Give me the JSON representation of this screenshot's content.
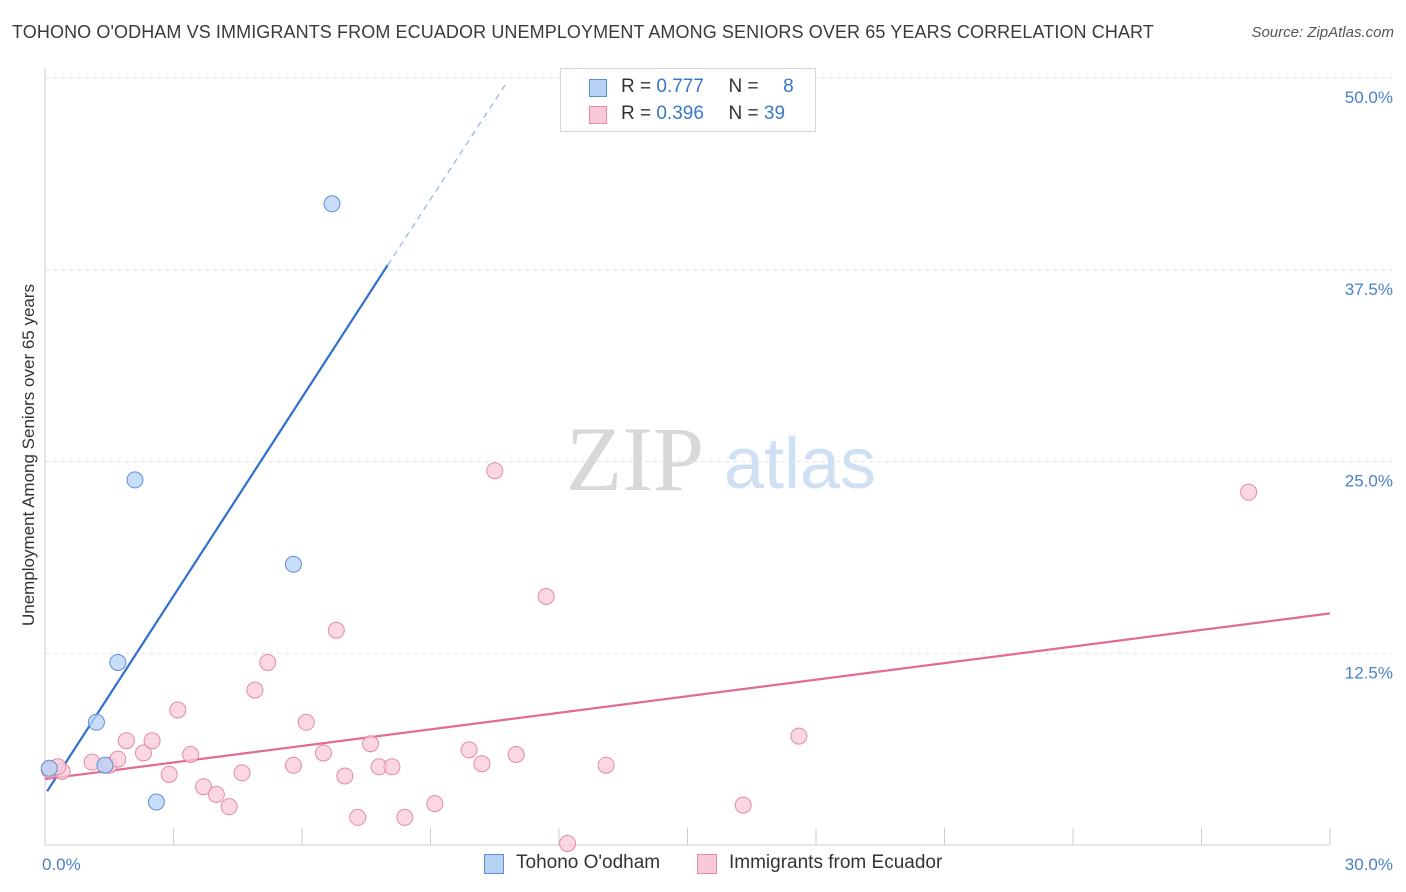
{
  "title": "TOHONO O'ODHAM VS IMMIGRANTS FROM ECUADOR UNEMPLOYMENT AMONG SENIORS OVER 65 YEARS CORRELATION CHART",
  "source": "Source: ZipAtlas.com",
  "watermark": {
    "zip": "ZIP",
    "atlas": "atlas"
  },
  "legend": {
    "r_label": "R =",
    "n_label": "N =",
    "rows": [
      {
        "name": "Tohono O'odham",
        "r": "0.777",
        "n": "8"
      },
      {
        "name": "Immigrants from Ecuador",
        "r": "0.396",
        "n": "39"
      }
    ]
  },
  "colors": {
    "blue_fill": "#b7d2f5",
    "blue_stroke": "#5b8fd6",
    "blue_line": "#2f6fce",
    "pink_fill": "#f9c9d8",
    "pink_stroke": "#e38aa8",
    "pink_line": "#e26a96",
    "tick_label": "#4a7fcb",
    "grid": "#e3e3e3"
  },
  "chart_data": {
    "type": "scatter",
    "title": "TOHONO O'ODHAM VS IMMIGRANTS FROM ECUADOR UNEMPLOYMENT AMONG SENIORS OVER 65 YEARS CORRELATION CHART",
    "xlabel": "",
    "ylabel": "Unemployment Among Seniors over 65 years",
    "xlim": [
      0,
      30
    ],
    "ylim": [
      0,
      50
    ],
    "x_tick_labels": [
      {
        "value": 0,
        "label": "0.0%"
      },
      {
        "value": 30,
        "label": "30.0%"
      }
    ],
    "y_tick_labels": [
      {
        "value": 12.5,
        "label": "12.5%"
      },
      {
        "value": 25,
        "label": "25.0%"
      },
      {
        "value": 37.5,
        "label": "37.5%"
      },
      {
        "value": 50,
        "label": "50.0%"
      }
    ],
    "series": [
      {
        "name": "Tohono O'odham",
        "color_key": "blue",
        "points": [
          {
            "x": 0.1,
            "y": 5.0
          },
          {
            "x": 1.4,
            "y": 5.2
          },
          {
            "x": 1.2,
            "y": 8.0
          },
          {
            "x": 1.7,
            "y": 11.9
          },
          {
            "x": 2.1,
            "y": 23.8
          },
          {
            "x": 2.6,
            "y": 2.8
          },
          {
            "x": 5.8,
            "y": 18.3
          },
          {
            "x": 6.7,
            "y": 41.8
          }
        ],
        "trend": {
          "x0": 0.05,
          "y0": 3.5,
          "x1": 8.0,
          "y1": 37.8,
          "dash_to_x": 10.8,
          "dash_to_y": 49.8
        }
      },
      {
        "name": "Immigrants from Ecuador",
        "color_key": "pink",
        "points": [
          {
            "x": 0.1,
            "y": 4.9
          },
          {
            "x": 0.4,
            "y": 4.8
          },
          {
            "x": 1.1,
            "y": 5.4
          },
          {
            "x": 1.5,
            "y": 5.2
          },
          {
            "x": 1.7,
            "y": 5.6
          },
          {
            "x": 1.9,
            "y": 6.8
          },
          {
            "x": 2.3,
            "y": 6.0
          },
          {
            "x": 2.5,
            "y": 6.8
          },
          {
            "x": 2.9,
            "y": 4.6
          },
          {
            "x": 3.1,
            "y": 8.8
          },
          {
            "x": 3.4,
            "y": 5.9
          },
          {
            "x": 3.7,
            "y": 3.8
          },
          {
            "x": 4.0,
            "y": 3.3
          },
          {
            "x": 4.3,
            "y": 2.5
          },
          {
            "x": 4.6,
            "y": 4.7
          },
          {
            "x": 4.9,
            "y": 10.1
          },
          {
            "x": 5.2,
            "y": 11.9
          },
          {
            "x": 5.8,
            "y": 5.2
          },
          {
            "x": 6.1,
            "y": 8.0
          },
          {
            "x": 6.5,
            "y": 6.0
          },
          {
            "x": 6.8,
            "y": 14.0
          },
          {
            "x": 7.0,
            "y": 4.5
          },
          {
            "x": 7.3,
            "y": 1.8
          },
          {
            "x": 7.6,
            "y": 6.6
          },
          {
            "x": 7.8,
            "y": 5.1
          },
          {
            "x": 8.1,
            "y": 5.1
          },
          {
            "x": 8.4,
            "y": 1.8
          },
          {
            "x": 9.1,
            "y": 2.7
          },
          {
            "x": 9.9,
            "y": 6.2
          },
          {
            "x": 10.2,
            "y": 5.3
          },
          {
            "x": 10.5,
            "y": 24.4
          },
          {
            "x": 11.0,
            "y": 5.9
          },
          {
            "x": 11.7,
            "y": 16.2
          },
          {
            "x": 12.2,
            "y": 0.1
          },
          {
            "x": 13.1,
            "y": 5.2
          },
          {
            "x": 16.3,
            "y": 2.6
          },
          {
            "x": 17.6,
            "y": 7.1
          },
          {
            "x": 28.1,
            "y": 23.0
          },
          {
            "x": 0.3,
            "y": 5.1
          }
        ],
        "trend": {
          "x0": 0.0,
          "y0": 4.3,
          "x1": 30.0,
          "y1": 15.1
        }
      }
    ]
  }
}
